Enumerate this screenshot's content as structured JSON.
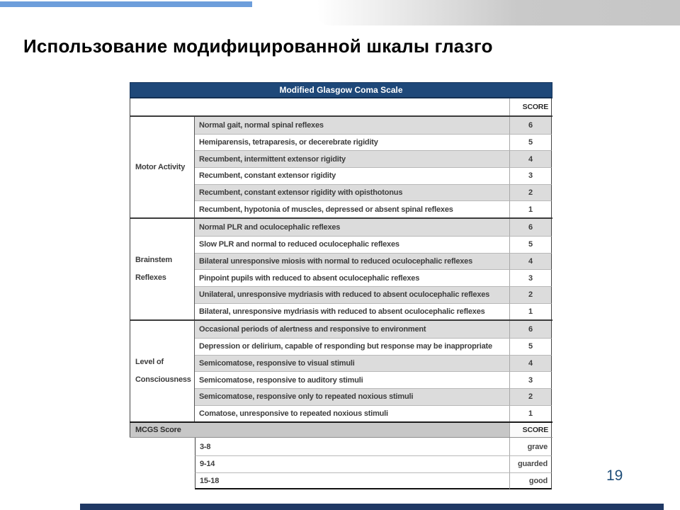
{
  "slide": {
    "title": "Использование модифицированной шкалы глазго",
    "page_number": "19"
  },
  "colors": {
    "top_accent_blue": "#6d9edb",
    "top_gradient_gray": "#c9c9c9",
    "table_header_navy": "#1e4879",
    "row_gray": "#dcdcdc",
    "mcgs_row_gray": "#c7c7c7",
    "footer_navy": "#1f3864",
    "page_number_blue": "#1f4e79"
  },
  "table": {
    "title": "Modified Glasgow Coma Scale",
    "score_header": "SCORE",
    "sections": [
      {
        "category": "Motor Activity",
        "rows": [
          {
            "desc": "Normal gait, normal spinal reflexes",
            "score": "6"
          },
          {
            "desc": "Hemiparensis, tetraparesis, or decerebrate rigidity",
            "score": "5"
          },
          {
            "desc": "Recumbent, intermittent extensor rigidity",
            "score": "4"
          },
          {
            "desc": "Recumbent, constant extensor rigidity",
            "score": "3"
          },
          {
            "desc": "Recumbent, constant extensor rigidity with opisthotonus",
            "score": "2"
          },
          {
            "desc": "Recumbent, hypotonia of muscles, depressed or absent spinal reflexes",
            "score": "1"
          }
        ]
      },
      {
        "category": "Brainstem Reflexes",
        "rows": [
          {
            "desc": "Normal PLR and oculocephalic reflexes",
            "score": "6"
          },
          {
            "desc": "Slow PLR and normal to reduced oculocephalic reflexes",
            "score": "5"
          },
          {
            "desc": "Bilateral unresponsive miosis with normal to reduced oculocephalic reflexes",
            "score": "4"
          },
          {
            "desc": "Pinpoint pupils with reduced to absent oculocephalic reflexes",
            "score": "3"
          },
          {
            "desc": "Unilateral, unresponsive mydriasis with reduced to absent oculocephalic reflexes",
            "score": "2"
          },
          {
            "desc": "Bilateral, unresponsive mydriasis with reduced to absent oculocephalic reflexes",
            "score": "1"
          }
        ]
      },
      {
        "category": "Level of Consciousness",
        "rows": [
          {
            "desc": "Occasional periods of alertness and responsive to environment",
            "score": "6"
          },
          {
            "desc": "Depression or delirium, capable of responding but response may be inappropriate",
            "score": "5"
          },
          {
            "desc": "Semicomatose, responsive to visual stimuli",
            "score": "4"
          },
          {
            "desc": "Semicomatose, responsive to auditory stimuli",
            "score": "3"
          },
          {
            "desc": "Semicomatose, responsive only to repeated noxious stimuli",
            "score": "2"
          },
          {
            "desc": "Comatose, unresponsive to repeated noxious stimuli",
            "score": "1"
          }
        ]
      }
    ],
    "summary": {
      "label": "MCGS Score",
      "score_header": "SCORE",
      "rows": [
        {
          "range": "3-8",
          "outcome": "grave"
        },
        {
          "range": "9-14",
          "outcome": "guarded"
        },
        {
          "range": "15-18",
          "outcome": "good"
        }
      ]
    }
  }
}
